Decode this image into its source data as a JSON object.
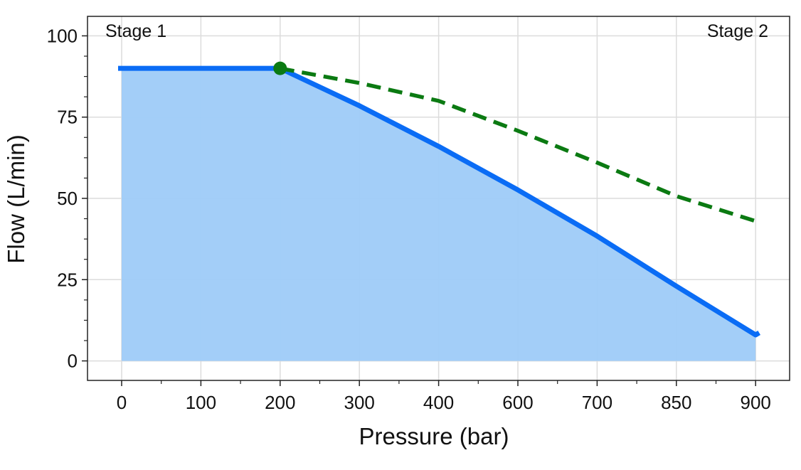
{
  "chart_data": {
    "type": "line",
    "title": "",
    "xlabel": "Pressure (bar)",
    "ylabel": "Flow (L/min)",
    "x_tick_labels": [
      "0",
      "100",
      "200",
      "300",
      "400",
      "600",
      "700",
      "850",
      "900"
    ],
    "x_axis_note": "tick labels equally spaced (categorical)",
    "y_ticks": [
      0,
      25,
      50,
      75,
      100
    ],
    "ylim": [
      -6,
      106
    ],
    "grid": true,
    "annotations": [
      "Stage 1",
      "Stage 2"
    ],
    "series": [
      {
        "style": "solid-filled",
        "color": "#0a6cf5",
        "fill_color": "#9ecbf8",
        "x": [
          "0",
          "100",
          "200",
          "300",
          "400",
          "600",
          "700",
          "850",
          "900"
        ],
        "values": [
          90,
          90,
          90,
          78.5,
          66,
          52.6,
          38.4,
          23,
          8
        ]
      },
      {
        "style": "dashed",
        "color": "#0b7a12",
        "x": [
          "200",
          "300",
          "400",
          "600",
          "700",
          "850",
          "900"
        ],
        "values": [
          90,
          85.5,
          80,
          70.8,
          61,
          50.7,
          43
        ]
      }
    ],
    "marker": {
      "x": "200",
      "y": 90,
      "color": "#0b7a12"
    }
  }
}
